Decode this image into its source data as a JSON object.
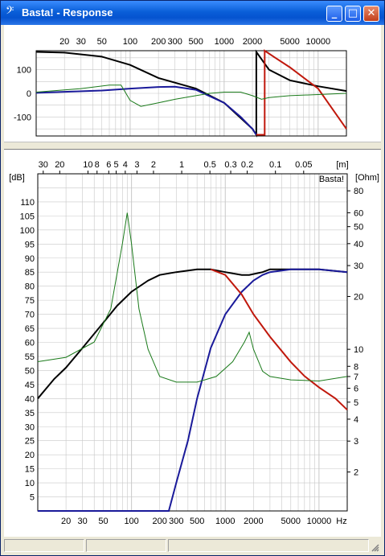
{
  "window": {
    "title": "Basta! - Response",
    "app_icon": "bass-clef-icon",
    "controls": {
      "minimize": "_",
      "maximize": "□",
      "close": "✕"
    }
  },
  "phase_plot": {
    "freq_ticks": [
      "20",
      "30",
      "50",
      "100",
      "200",
      "300",
      "500",
      "1000",
      "2000",
      "5000",
      "10000"
    ],
    "y_ticks": [
      "100",
      "0",
      "-100"
    ],
    "y_range": [
      -180,
      180
    ],
    "x_range_hz": [
      10,
      20000
    ]
  },
  "response_plot": {
    "watermark": "Basta!",
    "left_unit": "[dB]",
    "right_unit": "[Ohm]",
    "top_unit": "[m]",
    "bottom_unit": "Hz",
    "wavelength_ticks": [
      "30",
      "20",
      "10",
      "8",
      "6",
      "5",
      "4",
      "3",
      "2",
      "1",
      "0.5",
      "0.3",
      "0.2",
      "0.1",
      "0.05"
    ],
    "db_ticks": [
      "110",
      "105",
      "100",
      "95",
      "90",
      "85",
      "80",
      "75",
      "70",
      "65",
      "60",
      "55",
      "50",
      "45",
      "40",
      "35",
      "30",
      "25",
      "20",
      "15",
      "10",
      "5"
    ],
    "ohm_ticks": [
      "80",
      "60",
      "50",
      "40",
      "30",
      "20",
      "10",
      "8",
      "7",
      "6",
      "5",
      "4",
      "3",
      "2"
    ],
    "freq_ticks": [
      "20",
      "30",
      "50",
      "100",
      "200",
      "300",
      "500",
      "1000",
      "2000",
      "5000",
      "10000"
    ],
    "db_range": [
      0,
      120
    ],
    "x_range_hz": [
      10,
      20000
    ]
  },
  "colors": {
    "black": "#000000",
    "blue": "#1a1a9a",
    "red": "#c0180c",
    "green": "#1a7a1a",
    "grid": "#c8c8c8"
  },
  "chart_data": [
    {
      "type": "line",
      "title": "",
      "xlabel": "",
      "ylabel": "",
      "xscale": "log",
      "xlim": [
        10,
        20000
      ],
      "ylim": [
        -180,
        180
      ],
      "grid": true,
      "series": [
        {
          "color": "#000000",
          "x": [
            10,
            20,
            50,
            100,
            200,
            500,
            1000,
            2000,
            2200,
            2200,
            3000,
            5000,
            10000,
            20000
          ],
          "y": [
            175,
            172,
            155,
            120,
            65,
            20,
            -40,
            -150,
            -175,
            175,
            100,
            55,
            30,
            10
          ]
        },
        {
          "color": "#1a1a9a",
          "x": [
            10,
            50,
            100,
            200,
            300,
            500,
            1000,
            1500,
            2000,
            2200
          ],
          "y": [
            2,
            12,
            20,
            27,
            28,
            15,
            -40,
            -100,
            -150,
            -175
          ]
        },
        {
          "color": "#c0180c",
          "x": [
            2200,
            2200,
            2700,
            2700,
            3500,
            5000,
            10000,
            20000
          ],
          "y": [
            -175,
            -175,
            -175,
            180,
            150,
            110,
            20,
            -150
          ]
        },
        {
          "color": "#1a7a1a",
          "x": [
            10,
            30,
            60,
            80,
            100,
            130,
            200,
            300,
            500,
            700,
            1000,
            1500,
            2000,
            2500,
            3000,
            5000,
            10000,
            20000
          ],
          "y": [
            5,
            20,
            35,
            35,
            -30,
            -55,
            -40,
            -25,
            -10,
            0,
            5,
            5,
            -10,
            -25,
            -18,
            -10,
            -5,
            0
          ]
        }
      ]
    },
    {
      "type": "line",
      "title": "",
      "xlabel": "",
      "ylabel": "[dB]",
      "xscale": "log",
      "xlim": [
        10,
        20000
      ],
      "ylim": [
        0,
        120
      ],
      "grid": true,
      "series": [
        {
          "color": "#000000",
          "x": [
            10,
            15,
            20,
            30,
            50,
            70,
            100,
            150,
            200,
            300,
            500,
            700,
            1000,
            1500,
            1800,
            2500,
            3000,
            5000,
            10000,
            20000
          ],
          "y": [
            40,
            47,
            51,
            58,
            67,
            73,
            78,
            82,
            84,
            85,
            86,
            86,
            85,
            84,
            84,
            85,
            86,
            86,
            86,
            85
          ]
        },
        {
          "color": "#1a1a9a",
          "x": [
            10,
            200,
            250,
            300,
            400,
            500,
            700,
            1000,
            1500,
            2000,
            2500,
            3000,
            5000,
            10000,
            20000
          ],
          "y": [
            0,
            0,
            0,
            10,
            25,
            40,
            58,
            70,
            78,
            82,
            84,
            85,
            86,
            86,
            85
          ]
        },
        {
          "color": "#c0180c",
          "x": [
            700,
            1000,
            1500,
            2000,
            3000,
            5000,
            7000,
            10000,
            15000,
            20000
          ],
          "y": [
            86,
            84,
            77,
            70,
            62,
            53,
            48,
            44,
            40,
            36
          ]
        },
        {
          "color": "#1a7a1a",
          "axis": "ohm",
          "x": [
            10,
            20,
            40,
            60,
            80,
            90,
            100,
            120,
            150,
            200,
            300,
            500,
            800,
            1200,
            1600,
            1800,
            2000,
            2500,
            3000,
            5000,
            10000,
            20000
          ],
          "y": [
            8.5,
            9,
            11,
            17,
            40,
            60,
            40,
            17,
            10,
            7,
            6.5,
            6.5,
            7,
            8.5,
            11,
            12.5,
            10,
            7.5,
            7,
            6.7,
            6.6,
            7
          ]
        }
      ]
    }
  ]
}
